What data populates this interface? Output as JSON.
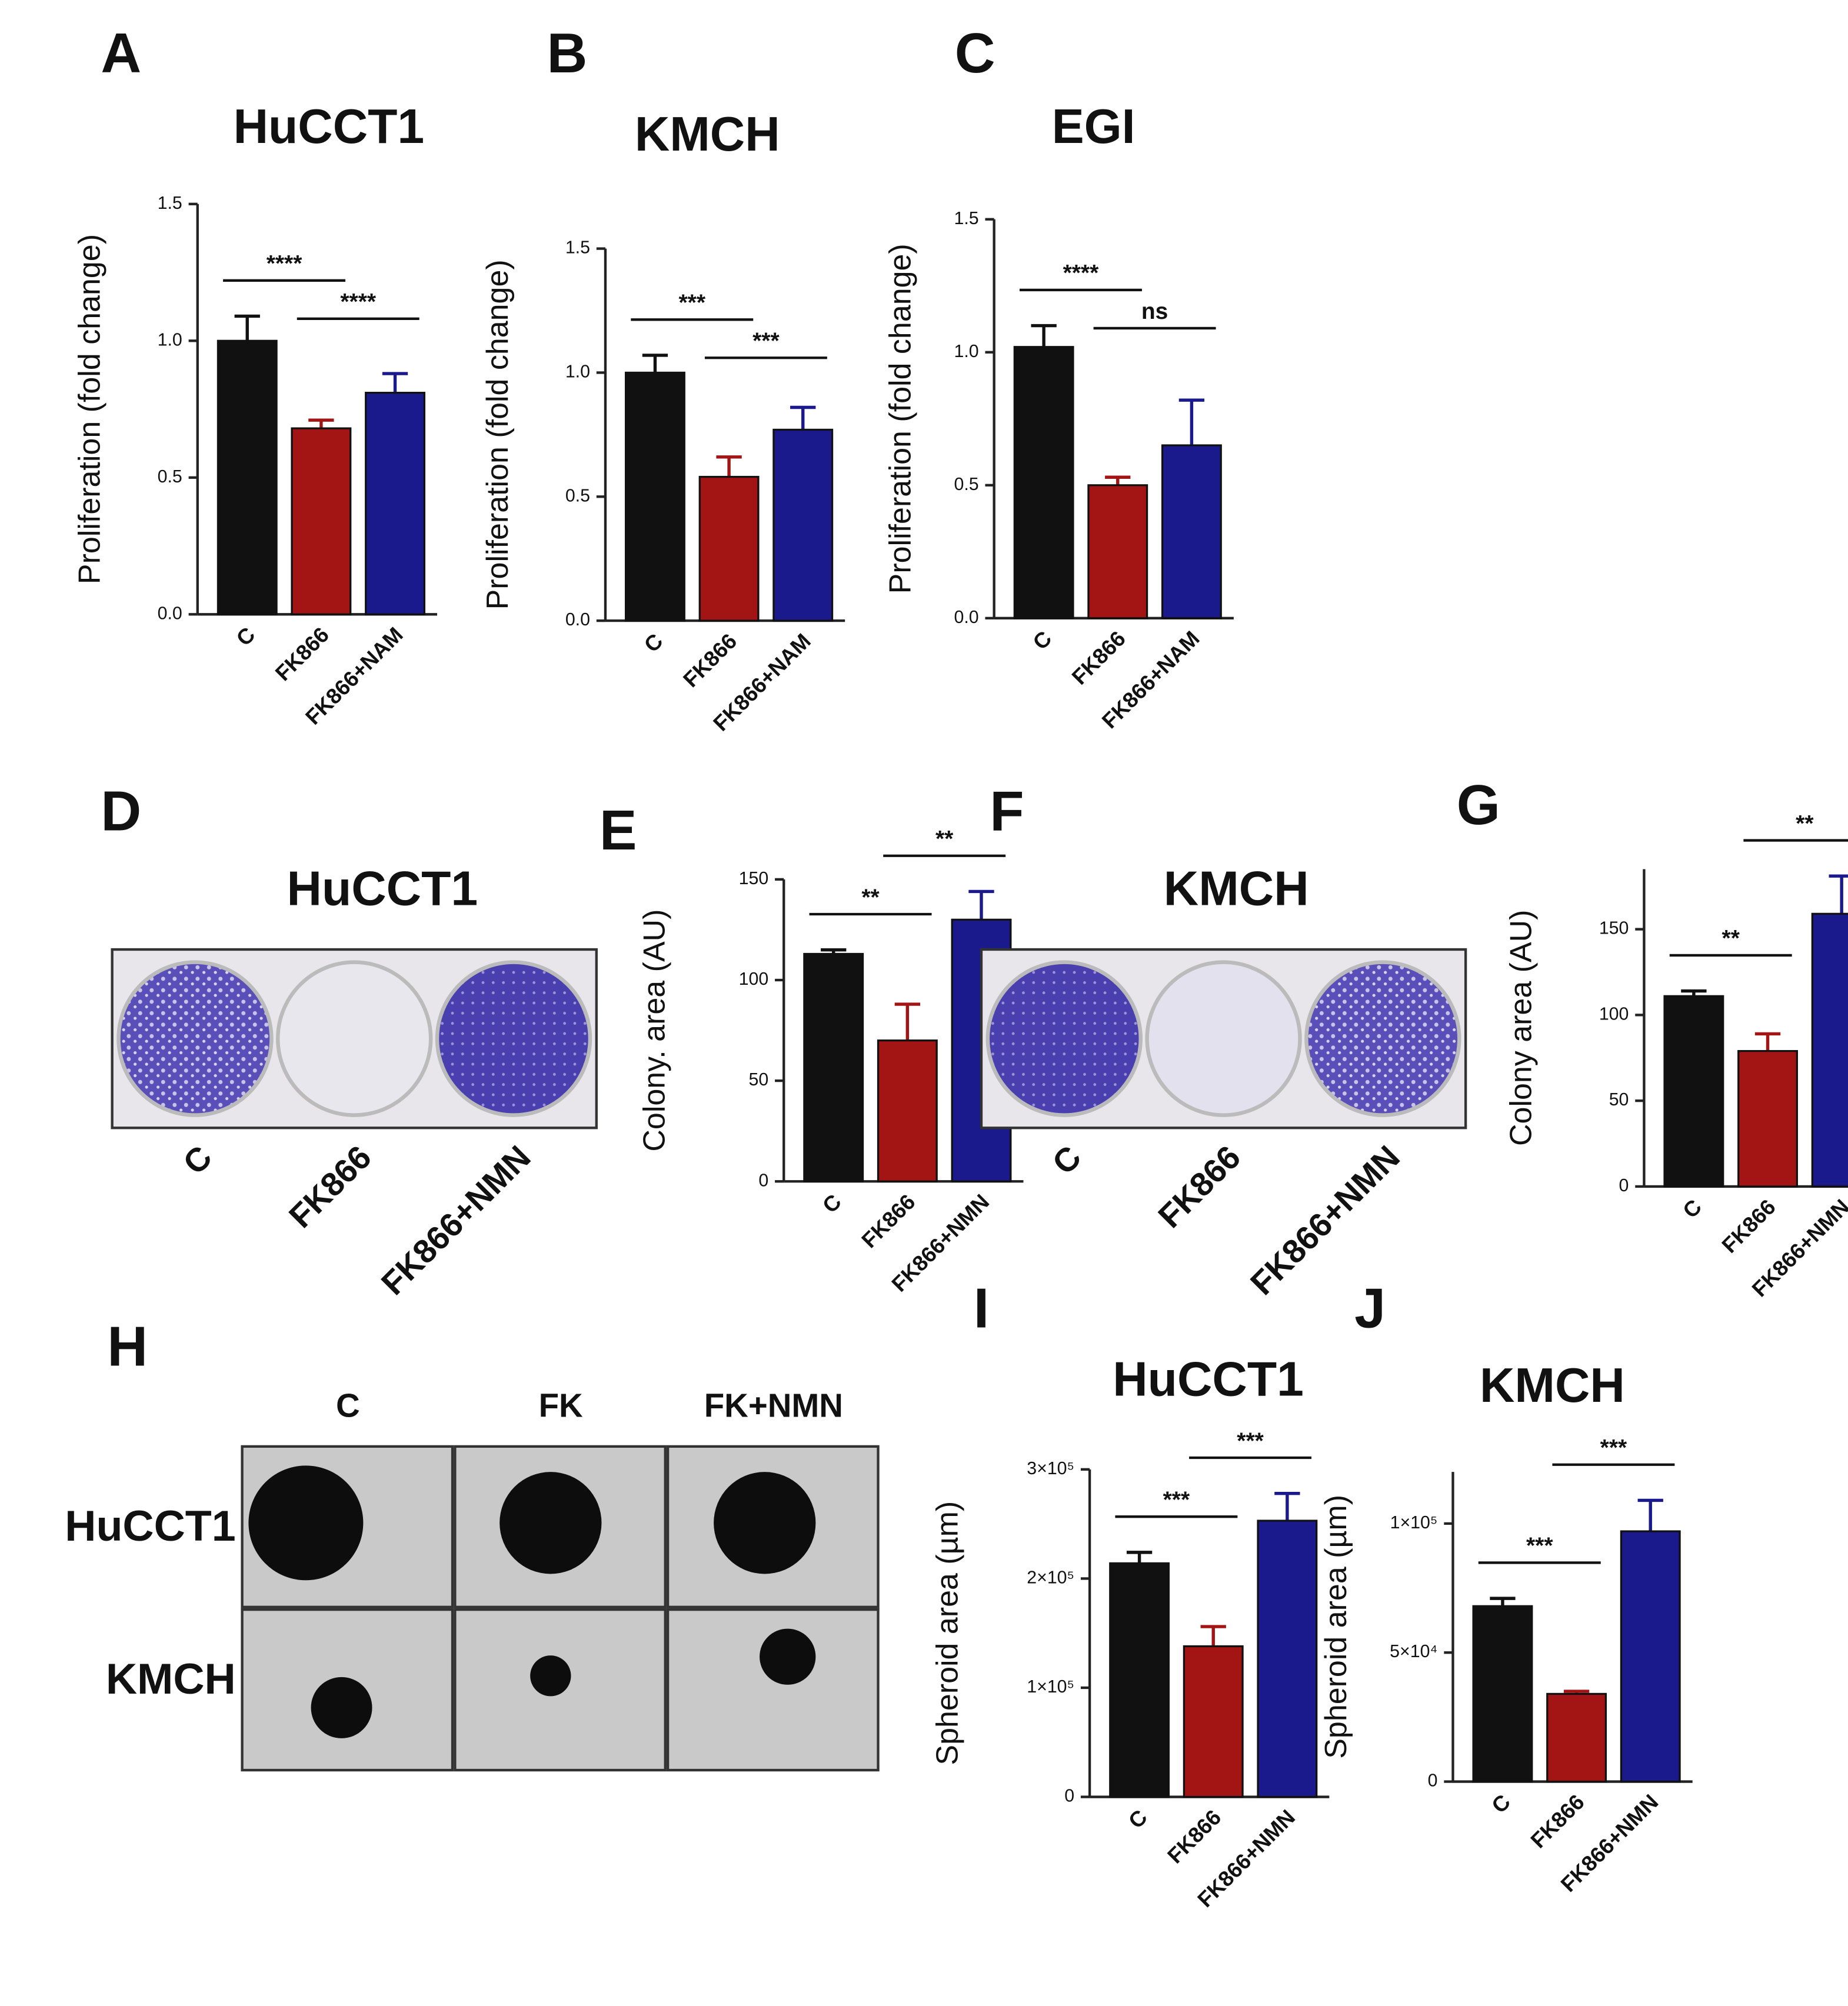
{
  "chart_data": [
    {
      "type": "bar",
      "label": "A",
      "title": "HuCCT1",
      "y_label": "Proliferation (fold change)",
      "categories": [
        "C",
        "FK866",
        "FK866+NAM"
      ],
      "values": [
        1.0,
        0.68,
        0.81
      ],
      "errors": [
        0.09,
        0.03,
        0.07
      ],
      "colors": [
        "#111111",
        "#a31515",
        "#1a1a8c"
      ],
      "ylim": [
        0,
        1.5
      ],
      "yticks": [
        {
          "value": 0,
          "label": "0.0"
        },
        0.5,
        {
          "value": 1,
          "label": "1.0"
        },
        1.5
      ],
      "annotations": [
        "****",
        "****"
      ]
    },
    {
      "type": "bar",
      "label": "B",
      "title": "KMCH",
      "y_label": "Proliferation (fold change)",
      "categories": [
        "C",
        "FK866",
        "FK866+NAM"
      ],
      "values": [
        1.0,
        0.58,
        0.77
      ],
      "errors": [
        0.07,
        0.08,
        0.09
      ],
      "colors": [
        "#111111",
        "#a31515",
        "#1a1a8c"
      ],
      "ylim": [
        0,
        1.5
      ],
      "yticks": [
        {
          "value": 0,
          "label": "0.0"
        },
        0.5,
        {
          "value": 1,
          "label": "1.0"
        },
        1.5
      ],
      "annotations": [
        "***",
        "***"
      ]
    },
    {
      "type": "bar",
      "label": "C",
      "title": "EGI",
      "y_label": "Proliferation (fold change)",
      "categories": [
        "C",
        "FK866",
        "FK866+NAM"
      ],
      "values": [
        1.02,
        0.5,
        0.65
      ],
      "errors": [
        0.08,
        0.03,
        0.17
      ],
      "colors": [
        "#111111",
        "#a31515",
        "#1a1a8c"
      ],
      "ylim": [
        0,
        1.5
      ],
      "yticks": [
        {
          "value": 0,
          "label": "0.0"
        },
        0.5,
        {
          "value": 1,
          "label": "1.0"
        },
        1.5
      ],
      "annotations": [
        "****",
        "ns"
      ]
    },
    {
      "type": "bar",
      "label": "E",
      "y_label": "Colony. area (AU)",
      "categories": [
        "C",
        "FK866",
        "FK866+NMN"
      ],
      "values": [
        113,
        70,
        130
      ],
      "errors": [
        2,
        18,
        14
      ],
      "colors": [
        "#111111",
        "#a31515",
        "#1a1a8c"
      ],
      "ylim": [
        0,
        150
      ],
      "yticks": [
        0,
        50,
        100,
        150
      ],
      "annotations": [
        "**",
        "**"
      ]
    },
    {
      "type": "bar",
      "label": "G",
      "y_label": "Colony  area (AU)",
      "categories": [
        "C",
        "FK866",
        "FK866+NMN"
      ],
      "values": [
        111,
        79,
        159
      ],
      "errors": [
        3,
        10,
        22
      ],
      "colors": [
        "#111111",
        "#a31515",
        "#1a1a8c"
      ],
      "ylim": [
        0,
        185
      ],
      "yticks": [
        0,
        50,
        100,
        150
      ],
      "annotations": [
        "**",
        "**"
      ]
    },
    {
      "type": "bar",
      "label": "I",
      "title": "HuCCT1",
      "y_label": "Spheroid area (µm)",
      "categories": [
        "C",
        "FK866",
        "FK866+NMN"
      ],
      "values": [
        214000,
        138000,
        253000
      ],
      "errors": [
        10000,
        18000,
        25000
      ],
      "colors": [
        "#111111",
        "#a31515",
        "#1a1a8c"
      ],
      "ylim": [
        0,
        300000
      ],
      "yticks": [
        0,
        {
          "value": 100000,
          "label": "1×10⁵"
        },
        {
          "value": 200000,
          "label": "2×10⁵"
        },
        {
          "value": 300000,
          "label": "3×10⁵"
        }
      ],
      "annotations": [
        "***",
        "***"
      ]
    },
    {
      "type": "bar",
      "label": "J",
      "title": "KMCH",
      "y_label": "Spheroid area (µm)",
      "categories": [
        "C",
        "FK866",
        "FK866+NMN"
      ],
      "values": [
        68000,
        34000,
        97000
      ],
      "errors": [
        3000,
        1000,
        12000
      ],
      "colors": [
        "#111111",
        "#a31515",
        "#1a1a8c"
      ],
      "ylim": [
        0,
        120000
      ],
      "yticks": [
        0,
        {
          "value": 50000,
          "label": "5×10⁴"
        },
        {
          "value": 100000,
          "label": "1×10⁵"
        }
      ],
      "annotations": [
        "***",
        "***"
      ]
    }
  ],
  "images": [
    {
      "label": "D",
      "title": "HuCCT1",
      "columns": [
        "C",
        "FK866",
        "FK866+NMN"
      ]
    },
    {
      "label": "F",
      "title": "KMCH",
      "columns": [
        "C",
        "FK866",
        "FK866+NMN"
      ]
    },
    {
      "label": "H",
      "columns": [
        "C",
        "FK",
        "FK+NMN"
      ],
      "rows": [
        "HuCCT1",
        "KMCH"
      ]
    }
  ]
}
